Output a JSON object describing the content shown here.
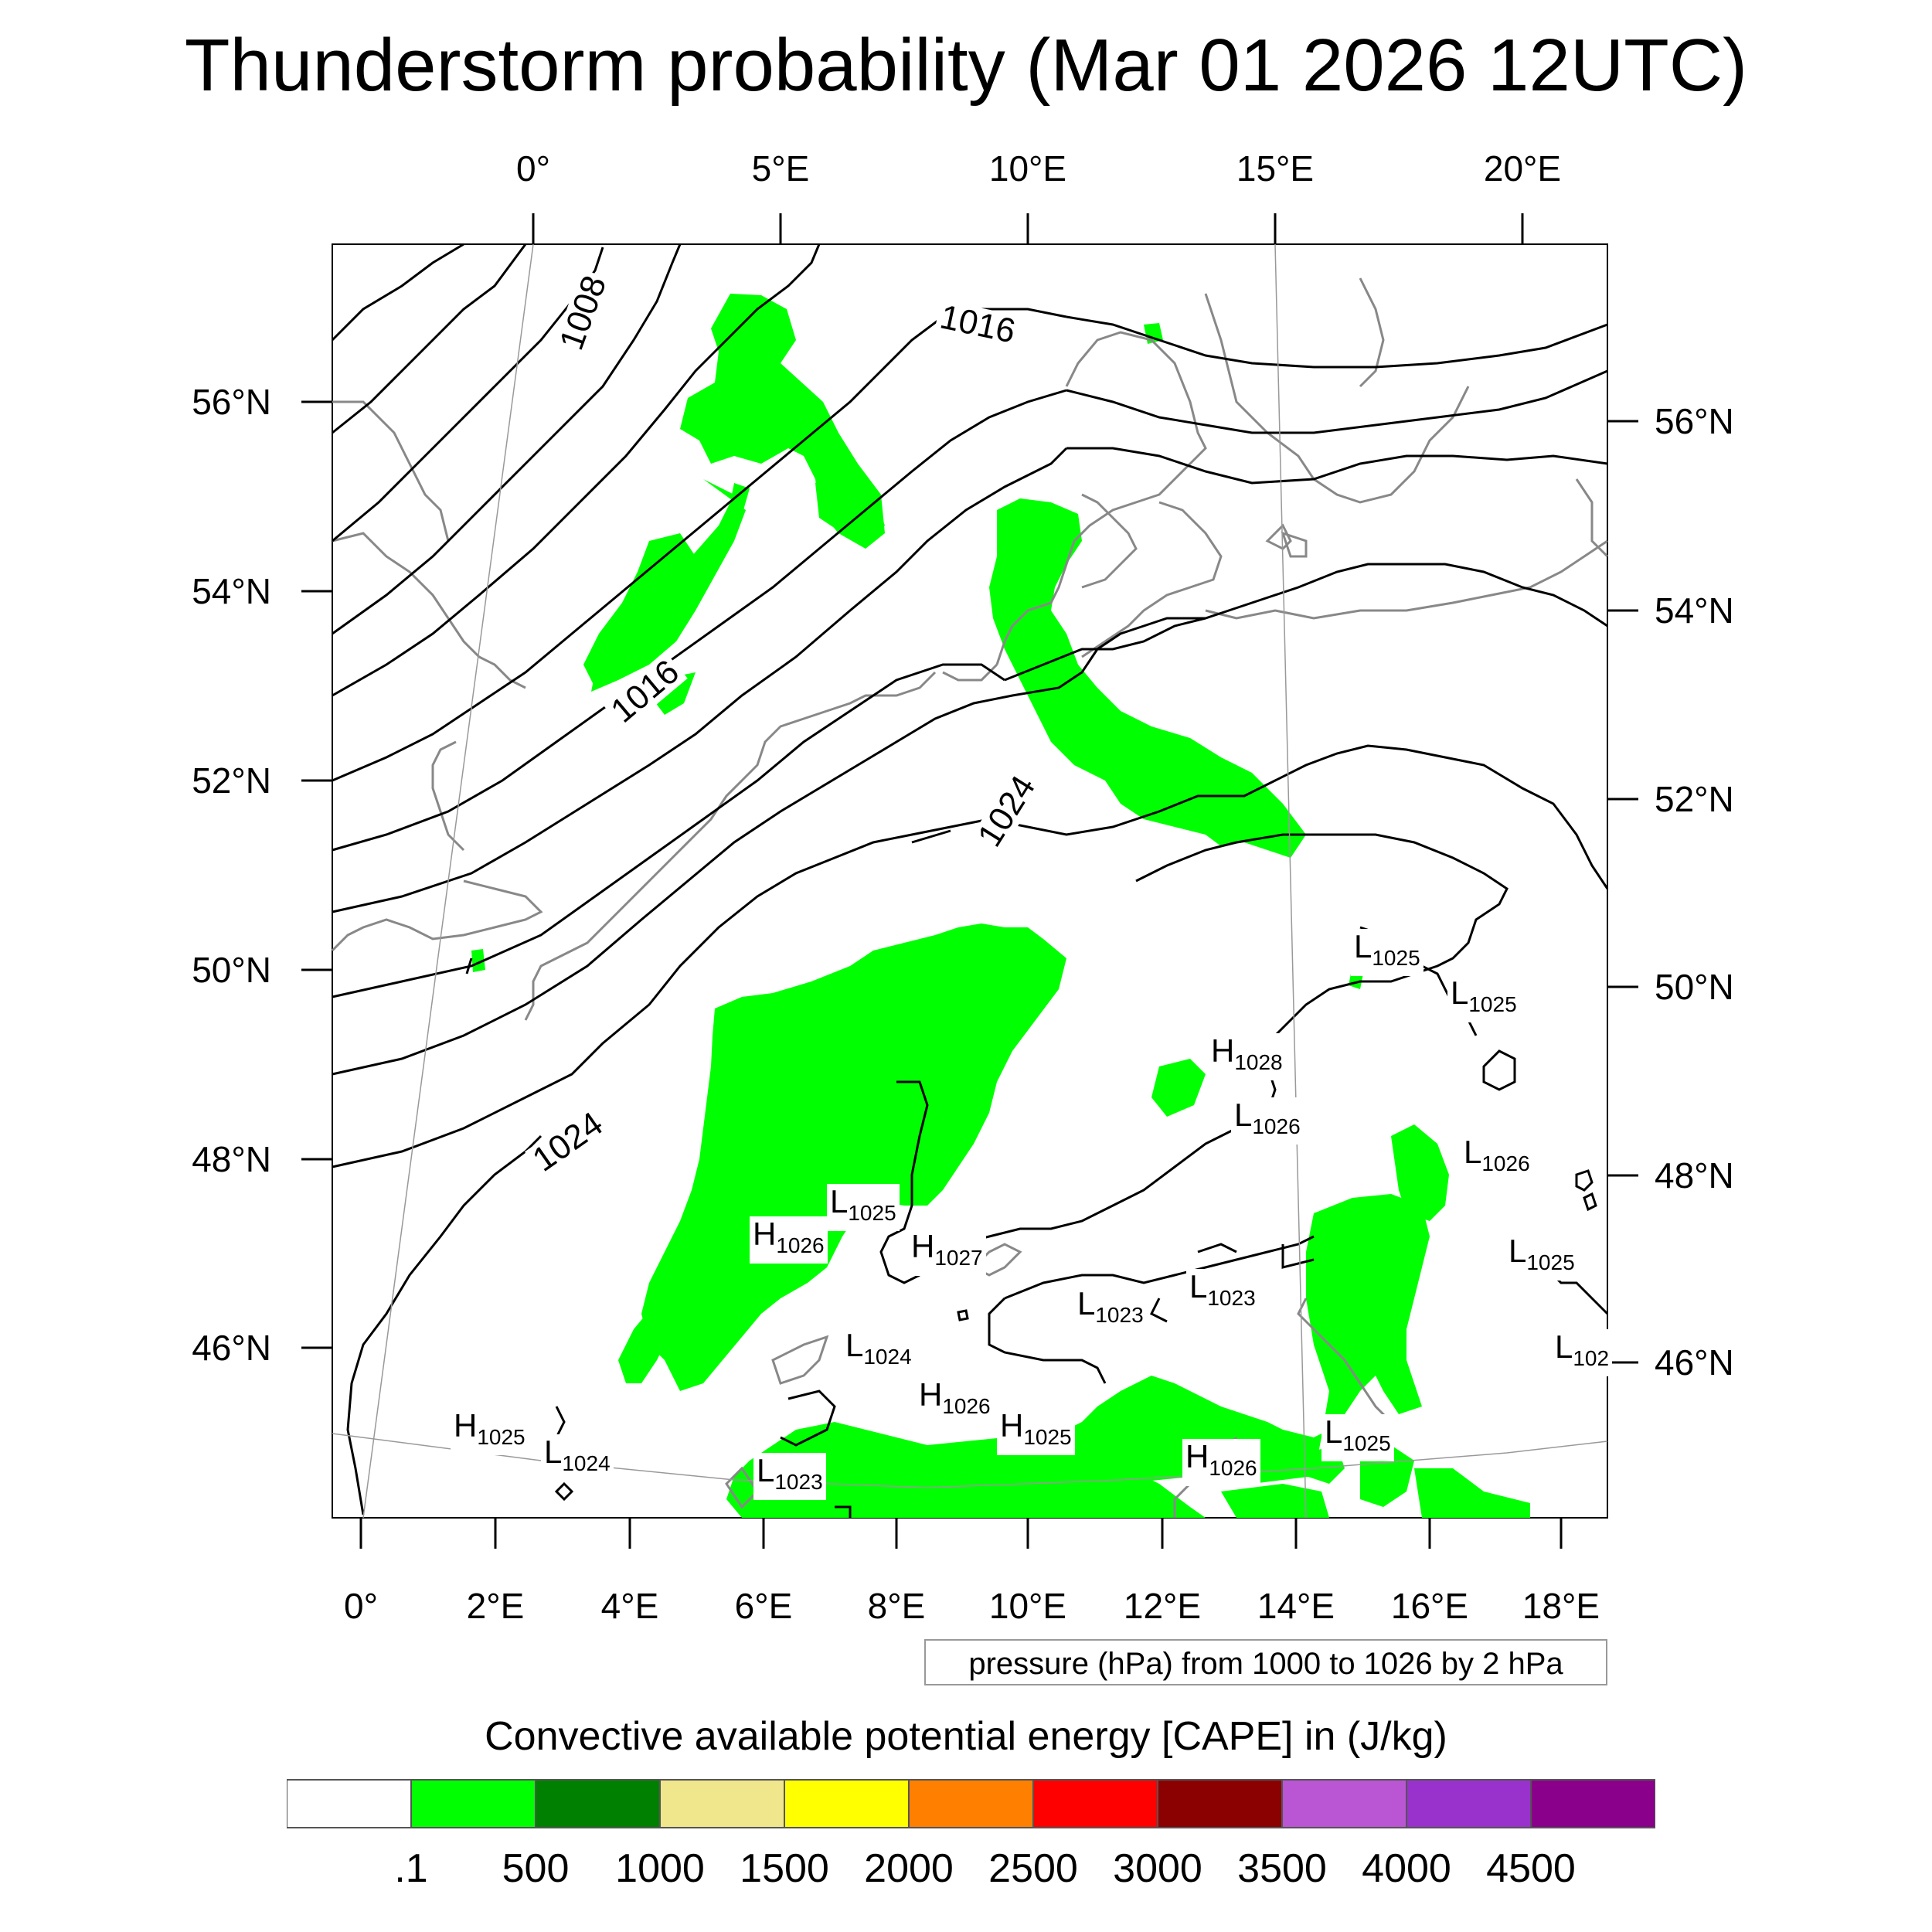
{
  "title": "Thunderstorm probability (Mar 01 2026 12UTC)",
  "map": {
    "region": "Central Europe / North Sea",
    "land_color": "#ffffff",
    "coastline_color": "#888888",
    "contour_color": "#000000",
    "cape_fill_color": "#00ff00",
    "top_ticks": [
      "0°",
      "5°E",
      "10°E",
      "15°E",
      "20°E"
    ],
    "bottom_ticks": [
      "0°",
      "2°E",
      "4°E",
      "6°E",
      "8°E",
      "10°E",
      "12°E",
      "14°E",
      "16°E",
      "18°E"
    ],
    "left_ticks": [
      "56°N",
      "54°N",
      "52°N",
      "50°N",
      "48°N",
      "46°N"
    ],
    "right_ticks": [
      "56°N",
      "54°N",
      "52°N",
      "50°N",
      "48°N",
      "46°N"
    ],
    "contour_labels": [
      "1008",
      "1016",
      "1016",
      "1024",
      "1024"
    ],
    "pressure_centers": [
      {
        "type": "L",
        "value": "1025"
      },
      {
        "type": "L",
        "value": "1025"
      },
      {
        "type": "H",
        "value": "1028"
      },
      {
        "type": "L",
        "value": "1026"
      },
      {
        "type": "L",
        "value": "1026"
      },
      {
        "type": "L",
        "value": "1025"
      },
      {
        "type": "H",
        "value": "1026"
      },
      {
        "type": "L",
        "value": "1025"
      },
      {
        "type": "H",
        "value": "1027"
      },
      {
        "type": "L",
        "value": "1023"
      },
      {
        "type": "L",
        "value": "1023"
      },
      {
        "type": "L",
        "value": "1024"
      },
      {
        "type": "H",
        "value": "1026"
      },
      {
        "type": "H",
        "value": "1025"
      },
      {
        "type": "H",
        "value": "1025"
      },
      {
        "type": "L",
        "value": "1024"
      },
      {
        "type": "L",
        "value": "1023"
      },
      {
        "type": "H",
        "value": "1026"
      },
      {
        "type": "L",
        "value": "1025"
      },
      {
        "type": "L",
        "value": "102"
      }
    ],
    "contour_note": "pressure (hPa) from 1000 to 1026 by 2 hPa"
  },
  "legend": {
    "title": "Convective available potential energy [CAPE] in (J/kg)",
    "colors": [
      "#ffffff",
      "#00ff00",
      "#008000",
      "#f0e68c",
      "#ffff00",
      "#ff8000",
      "#ff0000",
      "#8b0000",
      "#ba55d3",
      "#9932cc",
      "#8b008b"
    ],
    "labels": [
      ".1",
      "500",
      "1000",
      "1500",
      "2000",
      "2500",
      "3000",
      "3500",
      "4000",
      "4500"
    ]
  }
}
